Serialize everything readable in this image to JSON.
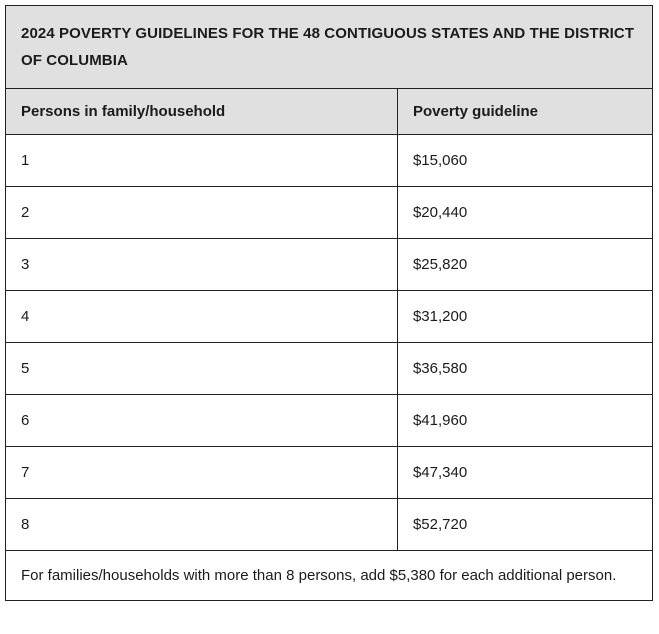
{
  "title": "2024 POVERTY GUIDELINES FOR THE 48 CONTIGUOUS STATES AND THE DISTRICT OF COLUMBIA",
  "table": {
    "columns": [
      "Persons in family/household",
      "Poverty guideline"
    ],
    "rows": [
      {
        "persons": "1",
        "guideline": "$15,060"
      },
      {
        "persons": "2",
        "guideline": "$20,440"
      },
      {
        "persons": "3",
        "guideline": "$25,820"
      },
      {
        "persons": "4",
        "guideline": "$31,200"
      },
      {
        "persons": "5",
        "guideline": "$36,580"
      },
      {
        "persons": "6",
        "guideline": "$41,960"
      },
      {
        "persons": "7",
        "guideline": "$47,340"
      },
      {
        "persons": "8",
        "guideline": "$52,720"
      }
    ],
    "footnote": "For families/households with more than 8 persons, add $5,380 for each additional person."
  },
  "colors": {
    "header_background": "#e0e0e0",
    "border": "#222222",
    "text": "#1b1b1b",
    "row_background": "#ffffff"
  }
}
